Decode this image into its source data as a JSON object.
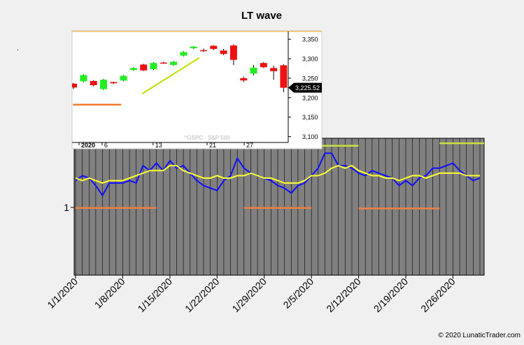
{
  "colors": {
    "background": "#f0f0f0",
    "plot_bg": "#808080",
    "wave_line": "#1010ff",
    "avg_line": "#ffff33",
    "high_marker": "#c8e040",
    "low_marker": "#f08040",
    "candle_up": "#22ee22",
    "candle_down": "#ee1111",
    "inset_trend": "#c0e000",
    "inset_support": "#f07830"
  },
  "chart_data": [
    {
      "type": "line",
      "title": "LT wave",
      "y_tick_label": "1",
      "x_tick_labels": [
        "1/1/2020",
        "1/8/2020",
        "1/15/2020",
        "1/22/2020",
        "1/29/2020",
        "2/5/2020",
        "2/12/2020",
        "2/19/2020",
        "2/26/2020"
      ],
      "x_start": "2020-01-01",
      "x_end": "2020-03-01",
      "ylim": [
        0.6,
        1.15
      ],
      "series": [
        {
          "color_key": "wave_line",
          "points": [
            [
              "2020-01-01",
              0.98
            ],
            [
              "2020-01-02",
              1.0
            ],
            [
              "2020-01-03",
              0.99
            ],
            [
              "2020-01-04",
              0.96
            ],
            [
              "2020-01-05",
              0.92
            ],
            [
              "2020-01-06",
              0.97
            ],
            [
              "2020-01-07",
              0.97
            ],
            [
              "2020-01-08",
              0.97
            ],
            [
              "2020-01-09",
              0.98
            ],
            [
              "2020-01-10",
              0.97
            ],
            [
              "2020-01-11",
              1.04
            ],
            [
              "2020-01-12",
              1.02
            ],
            [
              "2020-01-13",
              1.05
            ],
            [
              "2020-01-14",
              1.02
            ],
            [
              "2020-01-15",
              1.06
            ],
            [
              "2020-01-16",
              1.03
            ],
            [
              "2020-01-17",
              1.04
            ],
            [
              "2020-01-18",
              1.01
            ],
            [
              "2020-01-19",
              0.98
            ],
            [
              "2020-01-20",
              0.96
            ],
            [
              "2020-01-21",
              0.95
            ],
            [
              "2020-01-22",
              0.94
            ],
            [
              "2020-01-23",
              0.98
            ],
            [
              "2020-01-24",
              1.0
            ],
            [
              "2020-01-25",
              1.07
            ],
            [
              "2020-01-26",
              1.03
            ],
            [
              "2020-01-27",
              1.01
            ],
            [
              "2020-01-28",
              1.0
            ],
            [
              "2020-01-29",
              0.99
            ],
            [
              "2020-01-30",
              0.98
            ],
            [
              "2020-01-31",
              0.96
            ],
            [
              "2020-02-01",
              0.95
            ],
            [
              "2020-02-02",
              0.93
            ],
            [
              "2020-02-03",
              0.96
            ],
            [
              "2020-02-04",
              0.97
            ],
            [
              "2020-02-05",
              1.0
            ],
            [
              "2020-02-06",
              1.03
            ],
            [
              "2020-02-07",
              1.09
            ],
            [
              "2020-02-08",
              1.09
            ],
            [
              "2020-02-09",
              1.04
            ],
            [
              "2020-02-10",
              1.04
            ],
            [
              "2020-02-11",
              1.03
            ],
            [
              "2020-02-12",
              1.01
            ],
            [
              "2020-02-13",
              1.0
            ],
            [
              "2020-02-14",
              1.02
            ],
            [
              "2020-02-15",
              1.01
            ],
            [
              "2020-02-16",
              1.0
            ],
            [
              "2020-02-17",
              0.99
            ],
            [
              "2020-02-18",
              0.96
            ],
            [
              "2020-02-19",
              0.98
            ],
            [
              "2020-02-20",
              0.96
            ],
            [
              "2020-02-21",
              0.99
            ],
            [
              "2020-02-22",
              1.0
            ],
            [
              "2020-02-23",
              1.03
            ],
            [
              "2020-02-24",
              1.03
            ],
            [
              "2020-02-25",
              1.04
            ],
            [
              "2020-02-26",
              1.05
            ],
            [
              "2020-02-27",
              1.02
            ],
            [
              "2020-02-28",
              1.0
            ],
            [
              "2020-02-29",
              0.98
            ],
            [
              "2020-03-01",
              0.99
            ]
          ]
        },
        {
          "color_key": "avg_line",
          "points": [
            [
              "2020-01-01",
              0.99
            ],
            [
              "2020-01-02",
              0.98
            ],
            [
              "2020-01-03",
              0.99
            ],
            [
              "2020-01-04",
              0.98
            ],
            [
              "2020-01-05",
              0.97
            ],
            [
              "2020-01-06",
              0.98
            ],
            [
              "2020-01-07",
              0.98
            ],
            [
              "2020-01-08",
              0.98
            ],
            [
              "2020-01-09",
              0.99
            ],
            [
              "2020-01-10",
              1.0
            ],
            [
              "2020-01-11",
              1.01
            ],
            [
              "2020-01-12",
              1.02
            ],
            [
              "2020-01-13",
              1.02
            ],
            [
              "2020-01-14",
              1.02
            ],
            [
              "2020-01-15",
              1.04
            ],
            [
              "2020-01-16",
              1.04
            ],
            [
              "2020-01-17",
              1.02
            ],
            [
              "2020-01-18",
              1.01
            ],
            [
              "2020-01-19",
              1.0
            ],
            [
              "2020-01-20",
              0.99
            ],
            [
              "2020-01-21",
              0.99
            ],
            [
              "2020-01-22",
              1.0
            ],
            [
              "2020-01-23",
              0.99
            ],
            [
              "2020-01-24",
              0.99
            ],
            [
              "2020-01-25",
              1.0
            ],
            [
              "2020-01-26",
              1.0
            ],
            [
              "2020-01-27",
              1.01
            ],
            [
              "2020-01-28",
              1.0
            ],
            [
              "2020-01-29",
              0.99
            ],
            [
              "2020-01-30",
              0.99
            ],
            [
              "2020-01-31",
              0.98
            ],
            [
              "2020-02-01",
              0.97
            ],
            [
              "2020-02-02",
              0.97
            ],
            [
              "2020-02-03",
              0.97
            ],
            [
              "2020-02-04",
              0.98
            ],
            [
              "2020-02-05",
              1.0
            ],
            [
              "2020-02-06",
              1.0
            ],
            [
              "2020-02-07",
              1.01
            ],
            [
              "2020-02-08",
              1.03
            ],
            [
              "2020-02-09",
              1.04
            ],
            [
              "2020-02-10",
              1.03
            ],
            [
              "2020-02-11",
              1.04
            ],
            [
              "2020-02-12",
              1.02
            ],
            [
              "2020-02-13",
              1.01
            ],
            [
              "2020-02-14",
              1.0
            ],
            [
              "2020-02-15",
              1.0
            ],
            [
              "2020-02-16",
              0.99
            ],
            [
              "2020-02-17",
              0.99
            ],
            [
              "2020-02-18",
              0.98
            ],
            [
              "2020-02-19",
              0.99
            ],
            [
              "2020-02-20",
              1.0
            ],
            [
              "2020-02-21",
              1.0
            ],
            [
              "2020-02-22",
              0.99
            ],
            [
              "2020-02-23",
              1.0
            ],
            [
              "2020-02-24",
              1.01
            ],
            [
              "2020-02-25",
              1.01
            ],
            [
              "2020-02-26",
              1.01
            ],
            [
              "2020-02-27",
              1.01
            ],
            [
              "2020-02-28",
              1.0
            ],
            [
              "2020-02-29",
              1.0
            ],
            [
              "2020-03-01",
              1.0
            ]
          ]
        }
      ],
      "markers": [
        {
          "kind": "low",
          "from": "2020-01-01",
          "to": "2020-01-13",
          "y": 0.87
        },
        {
          "kind": "high",
          "from": "2020-01-13",
          "to": "2020-01-26",
          "y": 1.115
        },
        {
          "kind": "low",
          "from": "2020-01-26",
          "to": "2020-02-05",
          "y": 0.87
        },
        {
          "kind": "high",
          "from": "2020-02-05",
          "to": "2020-02-12",
          "y": 1.12
        },
        {
          "kind": "low",
          "from": "2020-02-12",
          "to": "2020-02-24",
          "y": 0.868
        },
        {
          "kind": "high",
          "from": "2020-02-24",
          "to": "2020-03-05",
          "y": 1.13
        },
        {
          "kind": "low",
          "from": "2020-03-05",
          "to": "2020-03-11",
          "y": 0.868
        },
        {
          "kind": "high",
          "from": "2020-03-11",
          "to": "2020-03-21",
          "y": 1.12
        }
      ]
    },
    {
      "type": "candlestick",
      "watermark": "^GSPC - S&P 500",
      "x_tick_labels": [
        "2020",
        "6",
        "13",
        "21",
        "27"
      ],
      "y_tick_labels": [
        "3,350",
        "3,300",
        "3,250",
        "3,200",
        "3,150",
        "3,100"
      ],
      "ylim": [
        3085,
        3370
      ],
      "last_price": "3,225.52",
      "last_price_value": 3225.52,
      "candles": [
        {
          "o": 3236,
          "c": 3226,
          "h": 3238,
          "l": 3222
        },
        {
          "o": 3242,
          "c": 3258,
          "h": 3260,
          "l": 3240
        },
        {
          "o": 3243,
          "c": 3232,
          "h": 3245,
          "l": 3229
        },
        {
          "o": 3222,
          "c": 3246,
          "h": 3248,
          "l": 3220
        },
        {
          "o": 3240,
          "c": 3237,
          "h": 3241,
          "l": 3235
        },
        {
          "o": 3244,
          "c": 3256,
          "h": 3258,
          "l": 3242
        },
        {
          "o": 3271,
          "c": 3276,
          "h": 3278,
          "l": 3269
        },
        {
          "o": 3285,
          "c": 3270,
          "h": 3287,
          "l": 3268
        },
        {
          "o": 3273,
          "c": 3289,
          "h": 3291,
          "l": 3271
        },
        {
          "o": 3290,
          "c": 3288,
          "h": 3292,
          "l": 3287
        },
        {
          "o": 3284,
          "c": 3292,
          "h": 3294,
          "l": 3282
        },
        {
          "o": 3308,
          "c": 3317,
          "h": 3319,
          "l": 3306
        },
        {
          "o": 3327,
          "c": 3331,
          "h": 3332,
          "l": 3325
        },
        {
          "o": 3322,
          "c": 3321,
          "h": 3326,
          "l": 3317
        },
        {
          "o": 3333,
          "c": 3325,
          "h": 3335,
          "l": 3322
        },
        {
          "o": 3321,
          "c": 3312,
          "h": 3325,
          "l": 3309
        },
        {
          "o": 3334,
          "c": 3297,
          "h": 3337,
          "l": 3284
        },
        {
          "o": 3250,
          "c": 3244,
          "h": 3254,
          "l": 3240
        },
        {
          "o": 3262,
          "c": 3277,
          "h": 3284,
          "l": 3257
        },
        {
          "o": 3289,
          "c": 3278,
          "h": 3291,
          "l": 3276
        },
        {
          "o": 3276,
          "c": 3268,
          "h": 3282,
          "l": 3246
        },
        {
          "o": 3283,
          "c": 3225.52,
          "h": 3286,
          "l": 3214
        }
      ],
      "trend_line": {
        "from": {
          "i": 6.3,
          "v": 3210
        },
        "to": {
          "i": 12.0,
          "v": 3302
        }
      },
      "support_line": {
        "from": {
          "i": -0.6,
          "v": 3182
        },
        "to": {
          "i": 4.2,
          "v": 3182
        }
      }
    }
  ],
  "copyright": "© 2020 LunaticTrader.com"
}
